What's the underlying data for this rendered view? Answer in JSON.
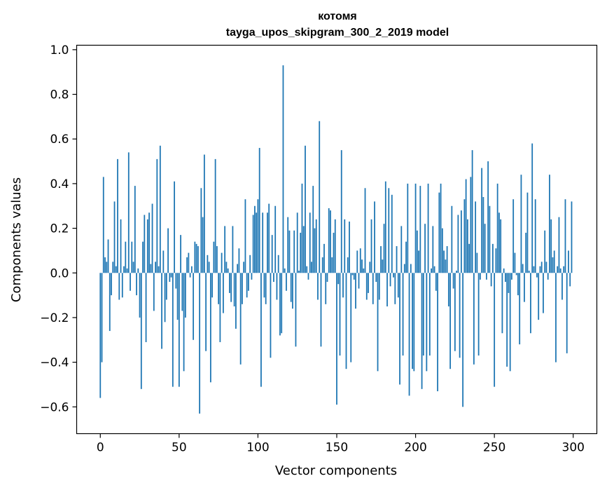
{
  "chart_data": {
    "type": "bar",
    "title": "котомя",
    "subtitle": "tayga_upos_skipgram_300_2_2019 model",
    "xlabel": "Vector components",
    "ylabel": "Components values",
    "xlim": [
      -15,
      315
    ],
    "ylim": [
      -0.72,
      1.02
    ],
    "xticks": [
      0,
      50,
      100,
      150,
      200,
      250,
      300
    ],
    "xtick_labels": [
      "0",
      "50",
      "100",
      "150",
      "200",
      "250",
      "300"
    ],
    "yticks": [
      -0.6,
      -0.4,
      -0.2,
      0.0,
      0.2,
      0.4,
      0.6,
      0.8,
      1.0
    ],
    "ytick_labels": [
      "−0.6",
      "−0.4",
      "−0.2",
      "0.0",
      "0.2",
      "0.4",
      "0.6",
      "0.8",
      "1.0"
    ],
    "bar_color": "#1f77b4",
    "x": "component index 0..299",
    "values": [
      -0.56,
      -0.4,
      0.43,
      0.07,
      0.05,
      0.15,
      -0.26,
      -0.1,
      0.05,
      0.32,
      0.03,
      0.51,
      -0.12,
      0.24,
      -0.11,
      0.03,
      0.14,
      0.02,
      0.54,
      -0.08,
      0.14,
      0.05,
      0.39,
      -0.1,
      0.02,
      -0.2,
      -0.52,
      0.14,
      0.26,
      -0.31,
      0.24,
      0.27,
      0.04,
      0.31,
      -0.17,
      0.05,
      0.51,
      0.03,
      0.57,
      -0.34,
      0.1,
      -0.22,
      -0.12,
      0.2,
      -0.04,
      -0.02,
      -0.51,
      0.41,
      -0.07,
      -0.21,
      -0.51,
      0.17,
      -0.17,
      -0.44,
      -0.2,
      0.07,
      0.09,
      -0.02,
      0.03,
      -0.3,
      0.14,
      0.13,
      0.12,
      -0.63,
      0.38,
      0.25,
      0.53,
      -0.35,
      0.08,
      0.05,
      -0.49,
      -0.11,
      0.14,
      0.51,
      0.12,
      -0.14,
      -0.31,
      0.09,
      -0.18,
      0.21,
      0.05,
      0.02,
      -0.09,
      -0.13,
      0.21,
      -0.15,
      -0.25,
      0.04,
      0.11,
      -0.41,
      -0.14,
      0.05,
      0.33,
      -0.11,
      -0.08,
      0.08,
      -0.03,
      0.26,
      0.3,
      0.27,
      0.33,
      0.56,
      -0.51,
      0.27,
      -0.11,
      -0.14,
      0.27,
      0.31,
      -0.38,
      0.17,
      -0.04,
      0.3,
      -0.12,
      0.08,
      -0.28,
      -0.27,
      0.93,
      0.02,
      -0.08,
      0.25,
      0.19,
      -0.13,
      -0.16,
      0.19,
      -0.33,
      0.27,
      0.01,
      0.18,
      0.4,
      0.21,
      0.57,
      0.03,
      -0.03,
      0.27,
      0.05,
      0.39,
      0.2,
      0.24,
      -0.12,
      0.68,
      -0.33,
      0.07,
      0.13,
      -0.14,
      -0.04,
      0.29,
      0.28,
      0.07,
      0.18,
      0.24,
      -0.59,
      -0.05,
      -0.37,
      0.55,
      -0.11,
      0.24,
      -0.43,
      0.07,
      0.23,
      -0.4,
      -0.01,
      -0.03,
      -0.16,
      0.1,
      -0.07,
      0.11,
      0.06,
      0.02,
      0.38,
      -0.12,
      -0.09,
      0.05,
      0.24,
      -0.14,
      0.32,
      -0.04,
      -0.44,
      -0.12,
      0.12,
      0.06,
      0.22,
      0.41,
      -0.15,
      0.38,
      -0.06,
      0.35,
      -0.02,
      -0.14,
      0.12,
      -0.11,
      -0.5,
      0.21,
      -0.37,
      0.04,
      0.14,
      0.4,
      -0.55,
      0.04,
      -0.43,
      -0.44,
      0.4,
      0.19,
      0.1,
      0.39,
      -0.52,
      -0.37,
      0.22,
      -0.44,
      0.4,
      -0.37,
      0.02,
      0.21,
      0.03,
      -0.08,
      -0.53,
      0.36,
      0.4,
      0.2,
      0.1,
      0.06,
      0.12,
      -0.15,
      -0.43,
      0.3,
      -0.07,
      -0.35,
      0.01,
      0.26,
      -0.38,
      0.28,
      -0.6,
      0.33,
      0.42,
      0.24,
      0.13,
      0.43,
      0.55,
      -0.41,
      0.32,
      0.09,
      -0.37,
      -0.03,
      0.47,
      0.34,
      0.22,
      -0.03,
      0.5,
      0.3,
      -0.06,
      0.13,
      -0.51,
      0.11,
      0.4,
      0.27,
      0.24,
      -0.27,
      0.02,
      -0.04,
      -0.42,
      -0.09,
      -0.44,
      -0.03,
      0.33,
      0.09,
      -0.01,
      -0.1,
      -0.32,
      0.44,
      0.04,
      -0.13,
      0.18,
      0.36,
      0.01,
      -0.27,
      0.58,
      0.03,
      0.33,
      -0.02,
      -0.21,
      0.03,
      0.05,
      -0.18,
      0.19,
      0.05,
      -0.03,
      0.44,
      0.24,
      0.07,
      0.1,
      -0.4,
      0.03,
      0.25,
      0.02,
      -0.12,
      0.03,
      0.33,
      -0.36,
      0.1,
      -0.06,
      0.32
    ]
  }
}
